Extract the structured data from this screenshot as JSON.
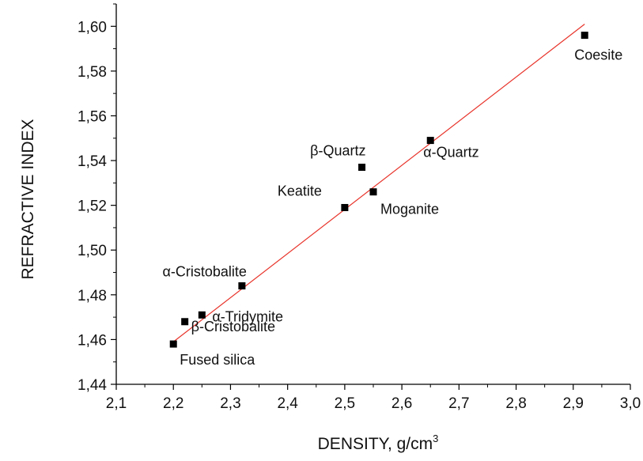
{
  "chart_data": {
    "type": "scatter",
    "xlabel_main": "DENSITY, g/cm",
    "xlabel_sup": "3",
    "ylabel": "REFRACTIVE INDEX",
    "xlim": [
      2.1,
      3.0
    ],
    "ylim": [
      1.44,
      1.61
    ],
    "x_ticks": [
      "2,1",
      "2,2",
      "2,3",
      "2,4",
      "2,5",
      "2,6",
      "2,7",
      "2,8",
      "2,9",
      "3,0"
    ],
    "x_tick_values": [
      2.1,
      2.2,
      2.3,
      2.4,
      2.5,
      2.6,
      2.7,
      2.8,
      2.9,
      3.0
    ],
    "y_ticks": [
      "1,44",
      "1,46",
      "1,48",
      "1,50",
      "1,52",
      "1,54",
      "1,56",
      "1,58",
      "1,60"
    ],
    "y_tick_values": [
      1.44,
      1.46,
      1.48,
      1.5,
      1.52,
      1.54,
      1.56,
      1.58,
      1.6
    ],
    "grid": false,
    "marker_color": "#000000",
    "fit_line_color": "#e8332a",
    "points": [
      {
        "label": "Fused silica",
        "x": 2.2,
        "y": 1.458
      },
      {
        "label": "β-Cristobalite",
        "x": 2.22,
        "y": 1.468
      },
      {
        "label": "α-Tridymite",
        "x": 2.25,
        "y": 1.471
      },
      {
        "label": "α-Cristobalite",
        "x": 2.32,
        "y": 1.484
      },
      {
        "label": "Keatite",
        "x": 2.5,
        "y": 1.519
      },
      {
        "label": "β-Quartz",
        "x": 2.53,
        "y": 1.537
      },
      {
        "label": "Moganite",
        "x": 2.55,
        "y": 1.526
      },
      {
        "label": "α-Quartz",
        "x": 2.65,
        "y": 1.549
      },
      {
        "label": "Coesite",
        "x": 2.92,
        "y": 1.596
      }
    ],
    "fit_line": {
      "x": [
        2.2,
        2.92
      ],
      "y": [
        1.459,
        1.601
      ]
    }
  }
}
